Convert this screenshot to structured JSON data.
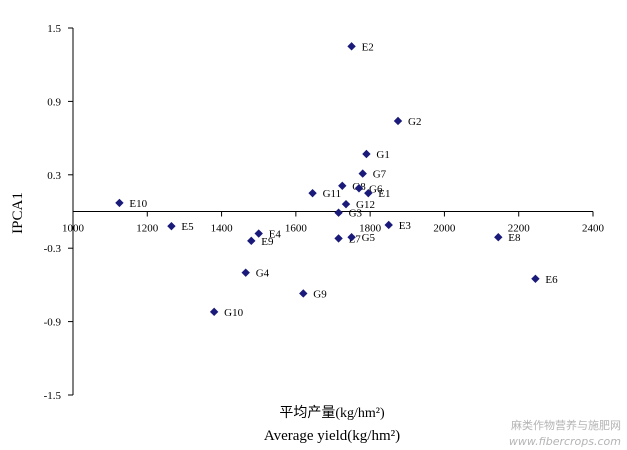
{
  "chart_data": {
    "type": "scatter",
    "xlabel_cn": "平均产量(kg/hm²)",
    "xlabel": "Average yield(kg/hm²)",
    "ylabel": "IPCA1",
    "xlim": [
      1000,
      2400
    ],
    "ylim": [
      -1.5,
      1.5
    ],
    "x_ticks": [
      "1000",
      "1200",
      "1400",
      "1600",
      "1800",
      "2000",
      "2200",
      "2400"
    ],
    "y_ticks": [
      "1.5",
      "0.9",
      "0.3",
      "-0.3",
      "-0.9",
      "-1.5"
    ],
    "y_tick_values": [
      1.5,
      0.9,
      0.3,
      -0.3,
      -0.9,
      -1.5
    ],
    "x_tick_values": [
      1000,
      1200,
      1400,
      1600,
      1800,
      2000,
      2200,
      2400
    ],
    "marker_color": "#1a1a7a",
    "points": [
      {
        "label": "E2",
        "x": 1750,
        "y": 1.35
      },
      {
        "label": "G2",
        "x": 1875,
        "y": 0.74
      },
      {
        "label": "G1",
        "x": 1790,
        "y": 0.47
      },
      {
        "label": "G7",
        "x": 1780,
        "y": 0.31
      },
      {
        "label": "G8",
        "x": 1725,
        "y": 0.21
      },
      {
        "label": "G6",
        "x": 1770,
        "y": 0.19
      },
      {
        "label": "E1",
        "x": 1795,
        "y": 0.15
      },
      {
        "label": "G11",
        "x": 1645,
        "y": 0.15
      },
      {
        "label": "G12",
        "x": 1735,
        "y": 0.06
      },
      {
        "label": "G3",
        "x": 1715,
        "y": -0.01
      },
      {
        "label": "E10",
        "x": 1125,
        "y": 0.07
      },
      {
        "label": "E5",
        "x": 1265,
        "y": -0.12
      },
      {
        "label": "E3",
        "x": 1850,
        "y": -0.11
      },
      {
        "label": "E8",
        "x": 2145,
        "y": -0.21
      },
      {
        "label": "E4",
        "x": 1500,
        "y": -0.18
      },
      {
        "label": "E9",
        "x": 1480,
        "y": -0.24
      },
      {
        "label": "E7",
        "x": 1715,
        "y": -0.22
      },
      {
        "label": "G5",
        "x": 1750,
        "y": -0.21
      },
      {
        "label": "G4",
        "x": 1465,
        "y": -0.5
      },
      {
        "label": "E6",
        "x": 2245,
        "y": -0.55
      },
      {
        "label": "G9",
        "x": 1620,
        "y": -0.67
      },
      {
        "label": "G10",
        "x": 1380,
        "y": -0.82
      }
    ]
  },
  "watermark": {
    "line1": "麻类作物营养与施肥网",
    "line2": "www.fibercrops.com"
  }
}
